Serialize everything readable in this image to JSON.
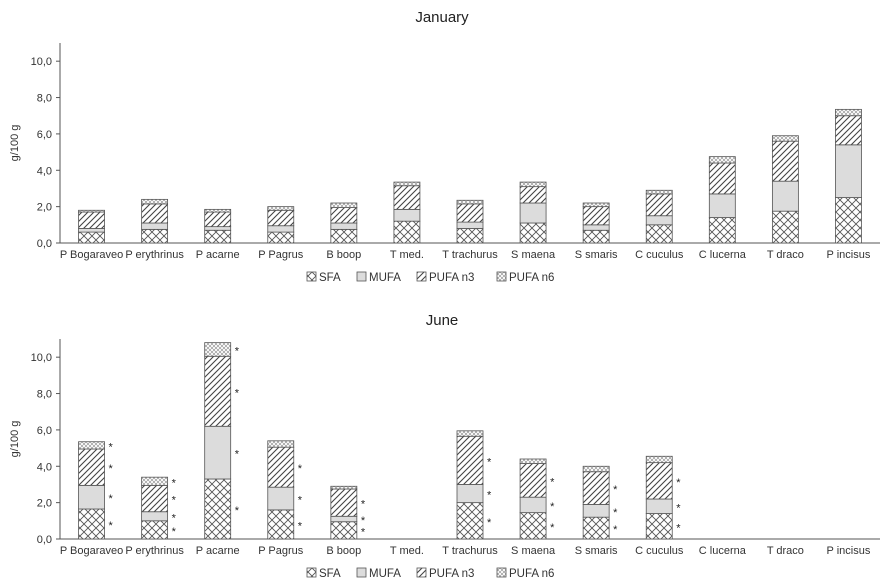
{
  "chart_data": [
    {
      "type": "bar",
      "stacked": true,
      "title": "January",
      "ylabel": "g/100 g",
      "ylim": [
        0,
        11
      ],
      "yticks": [
        "0,0",
        "2,0",
        "4,0",
        "6,0",
        "8,0",
        "10,0"
      ],
      "categories": [
        "P Bogaraveo",
        "P erythrinus",
        "P acarne",
        "P Pagrus",
        "B boop",
        "T med.",
        "T trachurus",
        "S maena",
        "S smaris",
        "C cuculus",
        "C lucerna",
        "T draco",
        "P incisus"
      ],
      "legend_position": "bottom",
      "series": [
        {
          "name": "SFA",
          "values": [
            0.6,
            0.75,
            0.7,
            0.6,
            0.75,
            1.2,
            0.8,
            1.1,
            0.7,
            1.0,
            1.4,
            1.75,
            2.5
          ]
        },
        {
          "name": "MUFA",
          "values": [
            0.2,
            0.35,
            0.2,
            0.35,
            0.35,
            0.65,
            0.35,
            1.1,
            0.3,
            0.5,
            1.3,
            1.65,
            2.9
          ]
        },
        {
          "name": "PUFA n3",
          "values": [
            0.9,
            1.05,
            0.8,
            0.85,
            0.85,
            1.3,
            1.0,
            0.9,
            1.0,
            1.2,
            1.7,
            2.2,
            1.6
          ]
        },
        {
          "name": "PUFA n6",
          "values": [
            0.1,
            0.25,
            0.15,
            0.2,
            0.25,
            0.2,
            0.2,
            0.25,
            0.2,
            0.2,
            0.35,
            0.3,
            0.35
          ]
        }
      ],
      "asterisks": []
    },
    {
      "type": "bar",
      "stacked": true,
      "title": "June",
      "ylabel": "g/100 g",
      "ylim": [
        0,
        11
      ],
      "yticks": [
        "0,0",
        "2,0",
        "4,0",
        "6,0",
        "8,0",
        "10,0"
      ],
      "categories": [
        "P Bogaraveo",
        "P erythrinus",
        "P acarne",
        "P Pagrus",
        "B boop",
        "T med.",
        "T trachurus",
        "S maena",
        "S smaris",
        "C cuculus",
        "C lucerna",
        "T draco",
        "P incisus"
      ],
      "legend_position": "bottom",
      "series": [
        {
          "name": "SFA",
          "values": [
            1.65,
            1.0,
            3.3,
            1.6,
            0.95,
            0,
            2.0,
            1.45,
            1.2,
            1.4,
            0,
            0,
            0
          ]
        },
        {
          "name": "MUFA",
          "values": [
            1.3,
            0.5,
            2.9,
            1.25,
            0.3,
            0,
            1.0,
            0.85,
            0.7,
            0.8,
            0,
            0,
            0
          ]
        },
        {
          "name": "PUFA n3",
          "values": [
            2.0,
            1.45,
            3.85,
            2.2,
            1.5,
            0,
            2.65,
            1.85,
            1.8,
            2.0,
            0,
            0,
            0
          ]
        },
        {
          "name": "PUFA n6",
          "values": [
            0.4,
            0.45,
            0.75,
            0.35,
            0.15,
            0,
            0.3,
            0.25,
            0.3,
            0.35,
            0,
            0,
            0
          ]
        }
      ],
      "asterisks": [
        [
          true,
          true,
          true,
          true
        ],
        [
          true,
          true,
          true,
          true
        ],
        [
          true,
          true,
          true,
          true
        ],
        [
          true,
          true,
          true,
          false
        ],
        [
          true,
          true,
          true,
          false
        ],
        [
          false,
          false,
          false,
          false
        ],
        [
          true,
          true,
          true,
          false
        ],
        [
          true,
          true,
          true,
          false
        ],
        [
          true,
          true,
          true,
          false
        ],
        [
          true,
          true,
          true,
          false
        ],
        [
          false,
          false,
          false,
          false
        ],
        [
          false,
          false,
          false,
          false
        ],
        [
          false,
          false,
          false,
          false
        ]
      ],
      "asterisk_symbol": "*"
    }
  ]
}
